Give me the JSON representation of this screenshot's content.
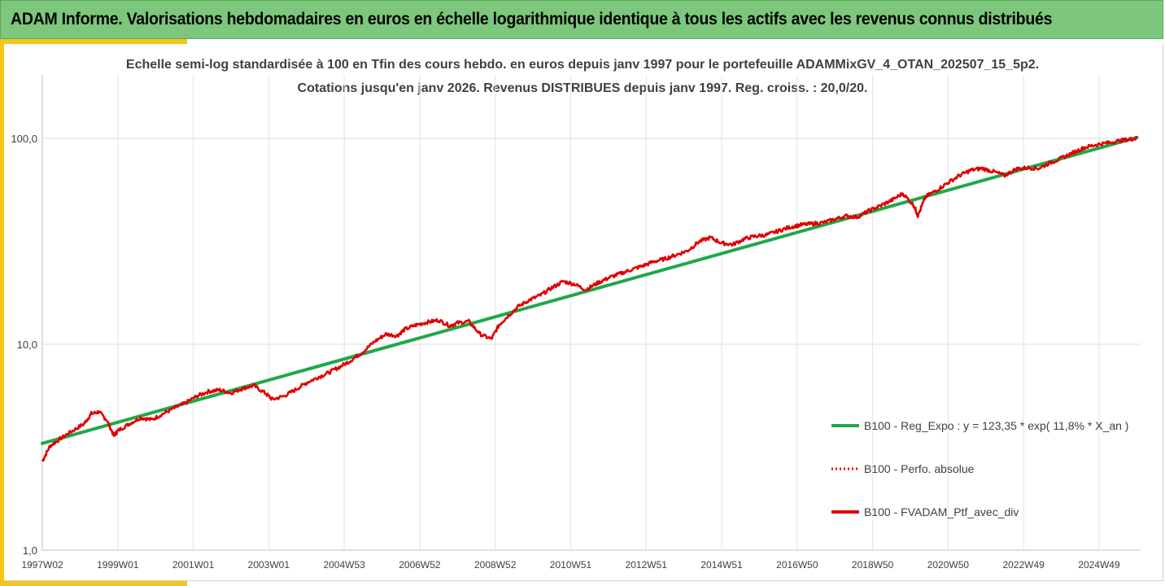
{
  "banner": {
    "title": "ADAM Informe. Valorisations hebdomadaires en euros en échelle logarithmique identique à tous les actifs avec les revenus connus distribués"
  },
  "colors": {
    "banner_bg": "#7cc77c",
    "accent": "#f5c518",
    "regression": "#1fa84a",
    "portfolio": "#e00000"
  },
  "chart_data": {
    "type": "line",
    "title_line1": "Echelle semi-log standardisée  à 100 en Tfin des cours hebdo.  en euros depuis janv 1997 pour le portefeuille ADAMMixGV_4_OTAN_202507_15_5p2.",
    "title_line2": "Cotations  jusqu'en janv 2026. Revenus DISTRIBUES depuis janv 1997. Reg. croiss. : 20,0/20.",
    "y_scale": "log",
    "ylim": [
      1,
      200
    ],
    "y_ticks": [
      {
        "value": 1,
        "label": "1,0"
      },
      {
        "value": 10,
        "label": "10,0"
      },
      {
        "value": 100,
        "label": "100,0"
      }
    ],
    "xlim": [
      1997.0,
      2026.1
    ],
    "x_ticks": [
      {
        "x": 1997.0,
        "label": "1997W02"
      },
      {
        "x": 1999.0,
        "label": "1999W01"
      },
      {
        "x": 2001.0,
        "label": "2001W01"
      },
      {
        "x": 2003.0,
        "label": "2003W01"
      },
      {
        "x": 2005.0,
        "label": "2004W53"
      },
      {
        "x": 2007.0,
        "label": "2006W52"
      },
      {
        "x": 2009.0,
        "label": "2008W52"
      },
      {
        "x": 2011.0,
        "label": "2010W51"
      },
      {
        "x": 2013.0,
        "label": "2012W51"
      },
      {
        "x": 2015.0,
        "label": "2014W51"
      },
      {
        "x": 2017.0,
        "label": "2016W50"
      },
      {
        "x": 2019.0,
        "label": "2018W50"
      },
      {
        "x": 2021.0,
        "label": "2020W50"
      },
      {
        "x": 2023.0,
        "label": "2022W49"
      },
      {
        "x": 2025.0,
        "label": "2024W49"
      }
    ],
    "grid": {
      "vertical": true,
      "horizontal": true
    },
    "legend_position": "right",
    "series": [
      {
        "name": "B100 - Reg_Expo : y = 123,35 * exp( 11,8% *  X_an )",
        "style": "solid-thick",
        "color": "#1fa84a",
        "x": [
          1997.0,
          2026.0
        ],
        "y": [
          3.3,
          101.0
        ]
      },
      {
        "name": "B100 - Perfo. absolue",
        "style": "dotted",
        "color": "#e00000",
        "x": [],
        "y": []
      },
      {
        "name": "B100 - FVADAM_Ptf_avec_div",
        "style": "solid",
        "color": "#e00000",
        "x": [
          1997.0,
          1997.2,
          1997.5,
          1997.8,
          1998.1,
          1998.3,
          1998.5,
          1998.7,
          1998.9,
          1999.0,
          1999.3,
          1999.6,
          1999.9,
          2000.2,
          2000.5,
          2000.8,
          2001.1,
          2001.4,
          2001.7,
          2002.0,
          2002.3,
          2002.6,
          2002.9,
          2003.1,
          2003.4,
          2003.7,
          2004.0,
          2004.3,
          2004.6,
          2004.9,
          2005.2,
          2005.5,
          2005.8,
          2006.1,
          2006.4,
          2006.6,
          2006.9,
          2007.2,
          2007.5,
          2007.8,
          2008.0,
          2008.3,
          2008.6,
          2008.9,
          2009.1,
          2009.3,
          2009.6,
          2009.9,
          2010.2,
          2010.5,
          2010.8,
          2011.1,
          2011.4,
          2011.7,
          2012.0,
          2012.3,
          2012.6,
          2012.9,
          2013.2,
          2013.5,
          2013.8,
          2014.1,
          2014.4,
          2014.7,
          2015.0,
          2015.3,
          2015.6,
          2015.9,
          2016.2,
          2016.5,
          2016.8,
          2017.1,
          2017.4,
          2017.7,
          2018.0,
          2018.3,
          2018.6,
          2018.9,
          2019.2,
          2019.5,
          2019.8,
          2020.1,
          2020.2,
          2020.4,
          2020.7,
          2021.0,
          2021.3,
          2021.6,
          2021.9,
          2022.2,
          2022.5,
          2022.8,
          2023.1,
          2023.4,
          2023.7,
          2024.0,
          2024.3,
          2024.6,
          2024.9,
          2025.2,
          2025.5,
          2025.8,
          2026.0
        ],
        "y": [
          2.7,
          3.2,
          3.5,
          3.8,
          4.1,
          4.6,
          4.7,
          4.3,
          3.6,
          3.8,
          4.1,
          4.4,
          4.3,
          4.6,
          4.9,
          5.2,
          5.6,
          5.9,
          6.0,
          5.8,
          6.1,
          6.3,
          5.8,
          5.4,
          5.6,
          6.0,
          6.5,
          6.9,
          7.3,
          7.8,
          8.4,
          9.2,
          10.3,
          11.2,
          11.0,
          11.8,
          12.4,
          12.8,
          13.1,
          12.3,
          12.7,
          12.9,
          11.2,
          10.6,
          12.4,
          13.5,
          15.2,
          16.4,
          17.3,
          18.8,
          20.2,
          19.6,
          18.4,
          19.8,
          21.0,
          22.0,
          23.0,
          24.0,
          25.2,
          26.0,
          27.2,
          28.5,
          31.5,
          33.0,
          31.0,
          30.5,
          32.5,
          33.5,
          34.0,
          35.5,
          37.0,
          38.0,
          38.5,
          39.0,
          40.5,
          42.0,
          41.5,
          44.5,
          47.0,
          50.0,
          54.0,
          47.0,
          42.0,
          52.0,
          56.0,
          61.0,
          66.0,
          70.0,
          71.5,
          69.0,
          66.0,
          71.0,
          72.0,
          71.5,
          76.0,
          80.0,
          85.0,
          90.0,
          93.0,
          95.0,
          97.0,
          99.0,
          100.0
        ]
      }
    ]
  }
}
